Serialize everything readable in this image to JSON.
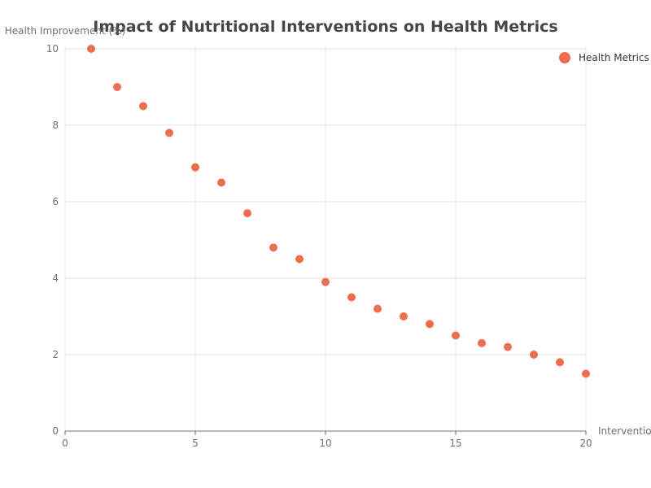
{
  "chart_data": {
    "type": "scatter",
    "title": "Impact of Nutritional Interventions on Health Metrics",
    "xlabel": "Interventions",
    "ylabel": "Health Improvement (%)",
    "xlim": [
      0,
      20
    ],
    "ylim": [
      0,
      10
    ],
    "x_ticks": [
      0,
      5,
      10,
      15,
      20
    ],
    "y_ticks": [
      0,
      2,
      4,
      6,
      8,
      10
    ],
    "grid": true,
    "legend_position": "top-right",
    "series": [
      {
        "name": "Health Metrics",
        "color": "#ee6c4f",
        "x": [
          1,
          2,
          3,
          4,
          5,
          6,
          7,
          8,
          9,
          10,
          11,
          12,
          13,
          14,
          15,
          16,
          17,
          18,
          19,
          20
        ],
        "y": [
          10,
          9,
          8.5,
          7.8,
          6.9,
          6.5,
          5.7,
          4.8,
          4.5,
          3.9,
          3.5,
          3.2,
          3.0,
          2.8,
          2.5,
          2.3,
          2.2,
          2.0,
          1.8,
          1.5
        ]
      }
    ]
  }
}
